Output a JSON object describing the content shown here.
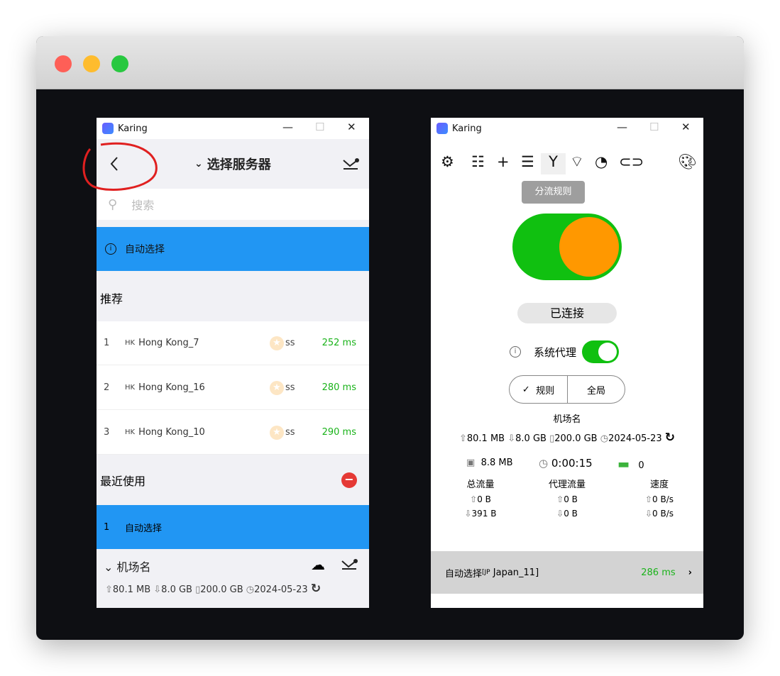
{
  "left": {
    "app_title": "Karing",
    "header_title": "选择服务器",
    "search_placeholder": "搜索",
    "auto_select": "自动选择",
    "recommended_label": "推荐",
    "servers": [
      {
        "index": "1",
        "flag": "HK",
        "name": "Hong Kong_7",
        "type": "ss",
        "latency": "252 ms"
      },
      {
        "index": "2",
        "flag": "HK",
        "name": "Hong Kong_16",
        "type": "ss",
        "latency": "280 ms"
      },
      {
        "index": "3",
        "flag": "HK",
        "name": "Hong Kong_10",
        "type": "ss",
        "latency": "290 ms"
      }
    ],
    "recent_label": "最近使用",
    "recent": [
      {
        "index": "1",
        "name": "自动选择"
      }
    ],
    "group_name": "机场名",
    "upload": "80.1 MB",
    "download": "8.0 GB",
    "total": "200.0 GB",
    "expire": "2024-05-23"
  },
  "right": {
    "app_title": "Karing",
    "tooltip": "分流规则",
    "connected": "已连接",
    "system_proxy_label": "系统代理",
    "system_proxy_on": true,
    "mode_rule": "规则",
    "mode_global": "全局",
    "group_name": "机场名",
    "upload": "80.1 MB",
    "download": "8.0 GB",
    "total": "200.0 GB",
    "expire": "2024-05-23",
    "memory": "8.8 MB",
    "uptime": "0:00:15",
    "connections": "0",
    "stats": [
      {
        "label": "总流量",
        "up": "0 B",
        "down": "391 B"
      },
      {
        "label": "代理流量",
        "up": "0 B",
        "down": "0 B"
      },
      {
        "label": "速度",
        "up": "0 B/s",
        "down": "0 B/s"
      }
    ],
    "current_label": "自动选择",
    "current_flag": "JP",
    "current_server": "Japan_11",
    "current_latency": "286 ms"
  },
  "colors": {
    "accent": "#2196f3",
    "green": "#1ab31a",
    "toggle_green": "#10c010",
    "knob": "#ff9800",
    "annotation": "#e02020"
  }
}
